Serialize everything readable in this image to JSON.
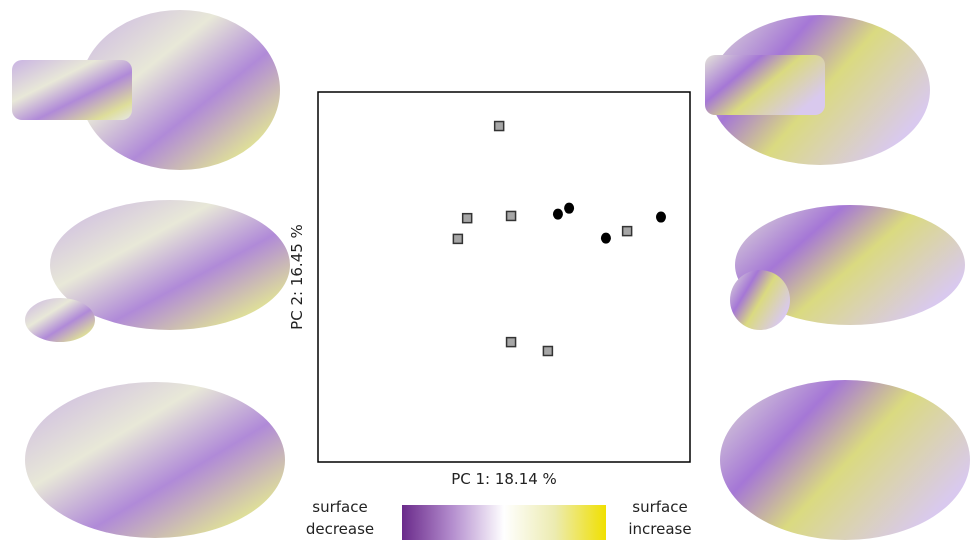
{
  "chart_data": {
    "type": "scatter",
    "xlabel": "PC 1: 18.14 %",
    "ylabel": "PC 2: 16.45 %",
    "xlim": [
      0,
      1
    ],
    "ylim": [
      0,
      1
    ],
    "series": [
      {
        "marker": "square",
        "color": "#a6a6a6",
        "x": [
          0.487,
          0.401,
          0.519,
          0.376,
          0.831,
          0.519,
          0.618
        ],
        "values": [
          0.908,
          0.659,
          0.665,
          0.603,
          0.624,
          0.324,
          0.3
        ]
      },
      {
        "marker": "circle",
        "color": "#000000",
        "x": [
          0.645,
          0.675,
          0.774,
          0.922
        ],
        "values": [
          0.67,
          0.686,
          0.605,
          0.662
        ]
      }
    ],
    "colorbar": {
      "colors": [
        "#6a2a8a",
        "#b58fcf",
        "#ffffff",
        "#ecebb0",
        "#f0e000"
      ],
      "low_label": [
        "surface",
        "decrease"
      ],
      "high_label": [
        "surface",
        "increase"
      ]
    }
  }
}
